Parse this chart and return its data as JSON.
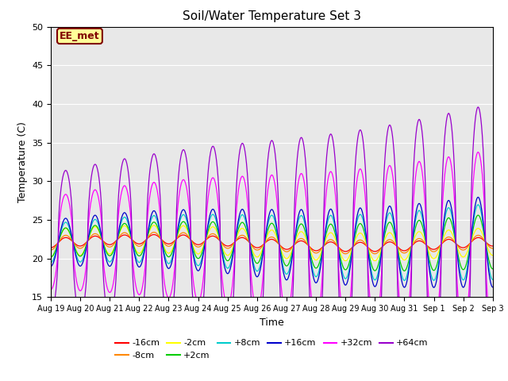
{
  "title": "Soil/Water Temperature Set 3",
  "xlabel": "Time",
  "ylabel": "Temperature (C)",
  "ylim": [
    15,
    50
  ],
  "yticks": [
    15,
    20,
    25,
    30,
    35,
    40,
    45,
    50
  ],
  "background_color": "#ffffff",
  "plot_bg_color": "#e8e8e8",
  "annotation_text": "EE_met",
  "annotation_bg": "#ffff99",
  "annotation_border": "#800000",
  "series": [
    {
      "label": "-16cm",
      "color": "#ff0000",
      "depth": -16
    },
    {
      "label": "-8cm",
      "color": "#ff8800",
      "depth": -8
    },
    {
      "label": "-2cm",
      "color": "#ffff00",
      "depth": -2
    },
    {
      "label": "+2cm",
      "color": "#00cc00",
      "depth": 2
    },
    {
      "label": "+8cm",
      "color": "#00cccc",
      "depth": 8
    },
    {
      "label": "+16cm",
      "color": "#0000cc",
      "depth": 16
    },
    {
      "label": "+32cm",
      "color": "#ff00ff",
      "depth": 32
    },
    {
      "label": "+64cm",
      "color": "#9900cc",
      "depth": 64
    }
  ],
  "xtick_labels": [
    "Aug 19",
    "Aug 20",
    "Aug 21",
    "Aug 22",
    "Aug 23",
    "Aug 24",
    "Aug 25",
    "Aug 26",
    "Aug 27",
    "Aug 28",
    "Aug 29",
    "Aug 30",
    "Aug 31",
    "Sep 1",
    "Sep 2",
    "Sep 3"
  ]
}
